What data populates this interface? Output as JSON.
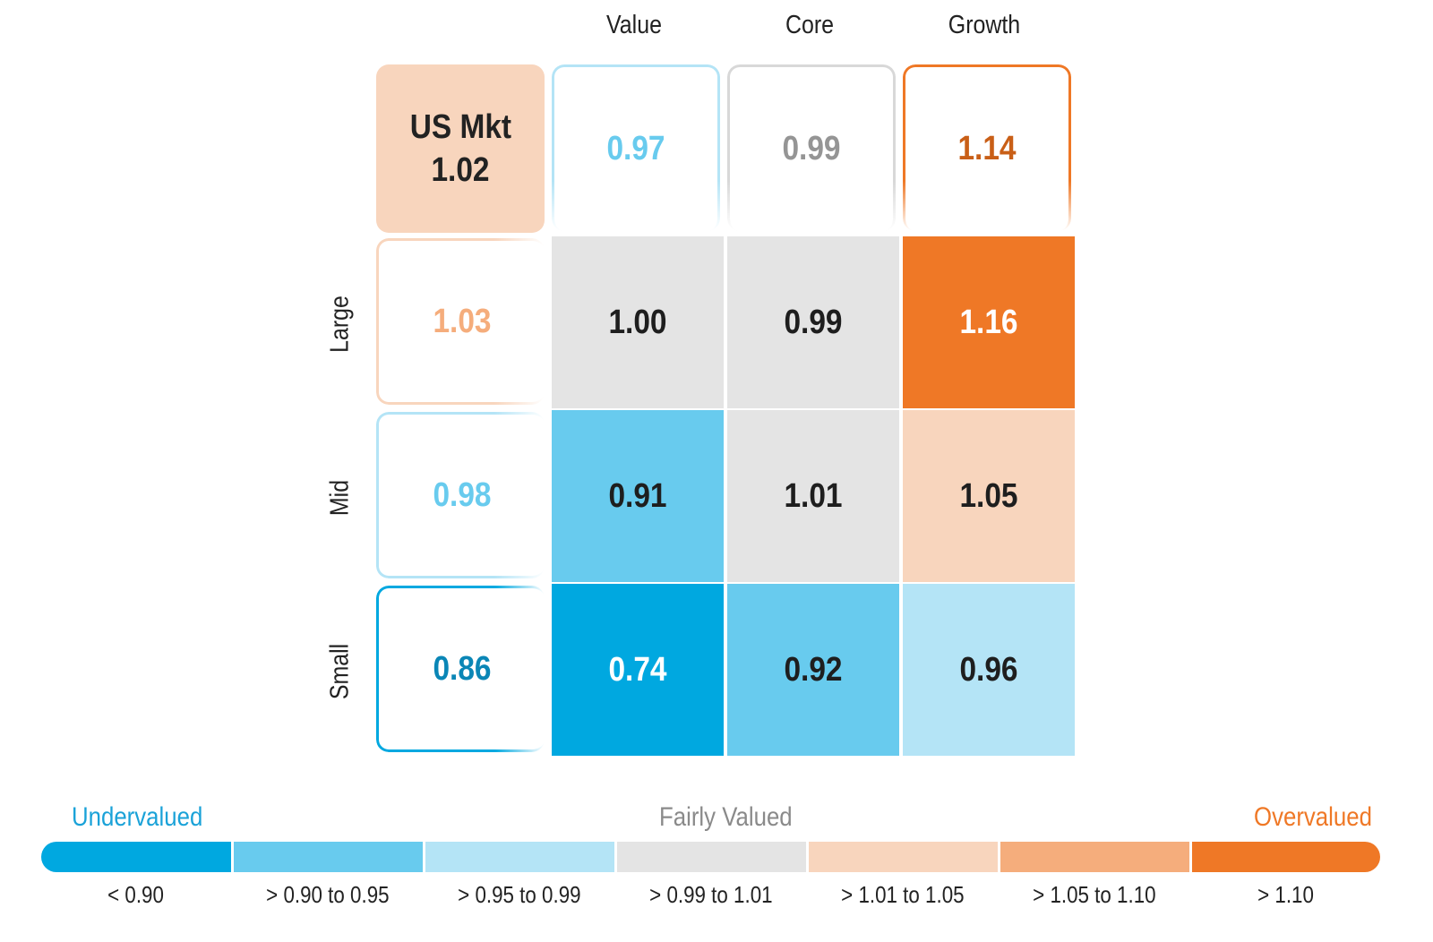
{
  "chart_data": {
    "type": "heatmap",
    "columns": [
      "Value",
      "Core",
      "Growth"
    ],
    "rows": [
      "Large",
      "Mid",
      "Small"
    ],
    "market": {
      "label": "US Mkt",
      "value": "1.02"
    },
    "column_totals": [
      "0.97",
      "0.99",
      "1.14"
    ],
    "row_totals": [
      "1.03",
      "0.98",
      "0.86"
    ],
    "values": [
      [
        "1.00",
        "0.99",
        "1.16"
      ],
      [
        "0.91",
        "1.01",
        "1.05"
      ],
      [
        "0.74",
        "0.92",
        "0.96"
      ]
    ],
    "legend": {
      "left_label": "Undervalued",
      "center_label": "Fairly Valued",
      "right_label": "Overvalued",
      "bins": [
        "< 0.90",
        "> 0.90 to 0.95",
        "> 0.95 to 0.99",
        "> 0.99 to 1.01",
        "> 1.01 to 1.05",
        "> 1.05 to 1.10",
        "> 1.10"
      ],
      "colors": [
        "#00a8e0",
        "#68cbee",
        "#b4e4f6",
        "#e4e4e4",
        "#f8d5bd",
        "#f5ad7c",
        "#ef7826"
      ]
    }
  }
}
